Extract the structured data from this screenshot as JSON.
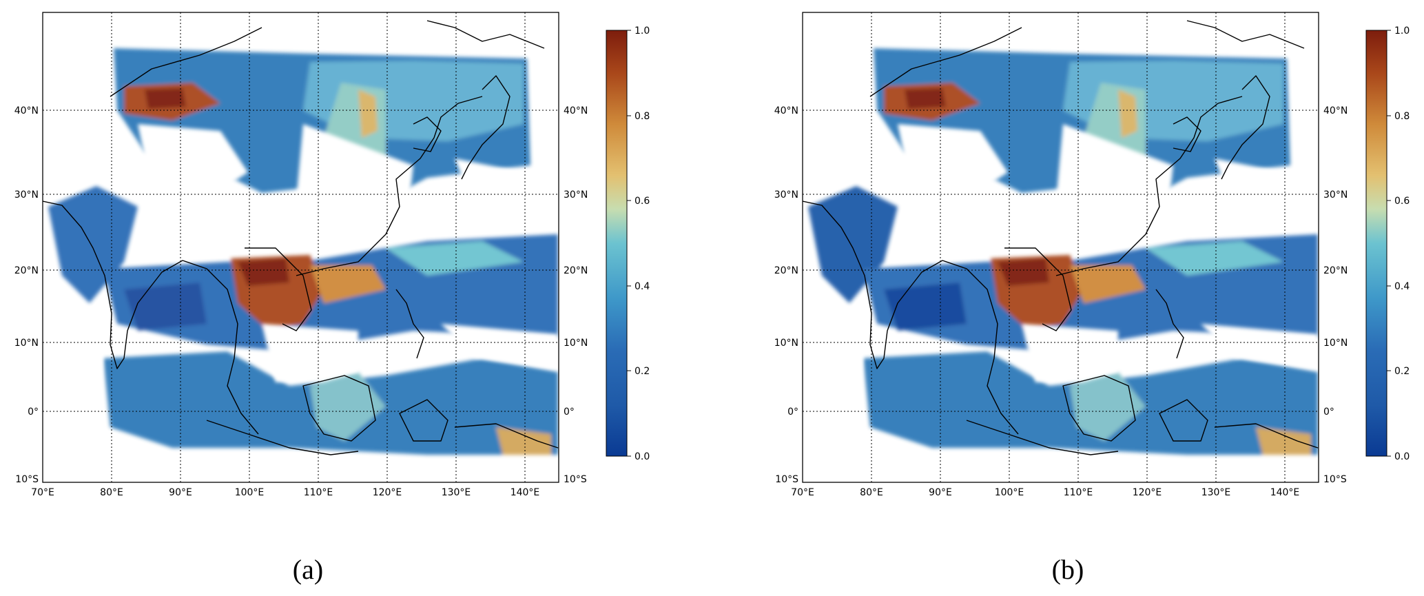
{
  "panels": [
    {
      "id": "a",
      "caption": "(a)",
      "lon_labels": [
        "70°E",
        "80°E",
        "90°E",
        "100°E",
        "110°E",
        "120°E",
        "130°E",
        "140°E"
      ],
      "lat_labels": [
        "10°S",
        "0°",
        "10°N",
        "20°N",
        "30°N",
        "40°N"
      ]
    },
    {
      "id": "b",
      "caption": "(b)",
      "lon_labels": [
        "70°E",
        "80°E",
        "90°E",
        "100°E",
        "110°E",
        "120°E",
        "130°E",
        "140°E"
      ],
      "lat_labels": [
        "10°S",
        "0°",
        "10°N",
        "20°N",
        "30°N",
        "40°N"
      ]
    }
  ],
  "colorbar": {
    "ticks": [
      "0.0",
      "0.2",
      "0.4",
      "0.6",
      "0.8",
      "1.0"
    ],
    "range": [
      0.0,
      1.0
    ],
    "colors": [
      "#0a3a93",
      "#2a6cb6",
      "#3e98c9",
      "#6cc3d0",
      "#c7ddb0",
      "#e3c070",
      "#cf8a3a",
      "#a9471a",
      "#7d1d0d"
    ]
  },
  "map_extent": {
    "lon": [
      70,
      145
    ],
    "lat": [
      -10,
      51.5
    ]
  },
  "gridlines": {
    "lon": [
      80,
      90,
      100,
      110,
      120,
      130,
      140
    ],
    "lat": [
      0,
      10,
      20,
      30,
      40
    ]
  }
}
